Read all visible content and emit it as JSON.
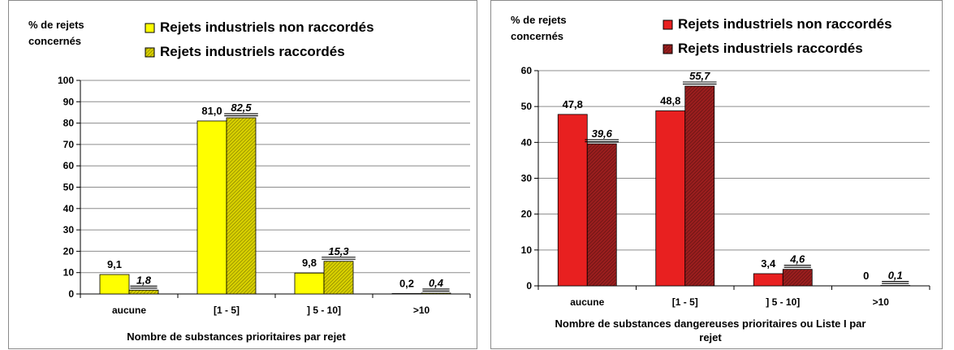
{
  "chart_data": [
    {
      "type": "bar",
      "ylabel": "% de rejets concernés",
      "xlabel": "Nombre de substances prioritaires par rejet",
      "categories": [
        "aucune",
        "[1 - 5]",
        "] 5 - 10]",
        ">10"
      ],
      "ylim": [
        0,
        100
      ],
      "yticks": [
        0,
        10,
        20,
        30,
        40,
        50,
        60,
        70,
        80,
        90,
        100
      ],
      "grid": true,
      "legend_position": "top",
      "series": [
        {
          "name": "Rejets industriels non raccordés",
          "values": [
            9.1,
            81.0,
            9.8,
            0.2
          ],
          "labels": [
            "9,1",
            "81,0",
            "9,8",
            "0,2"
          ],
          "color": "#ffff00",
          "pattern": "solid"
        },
        {
          "name": "Rejets industriels raccordés",
          "values": [
            1.8,
            82.5,
            15.3,
            0.4
          ],
          "labels": [
            "1,8",
            "82,5",
            "15,3",
            "0,4"
          ],
          "color": "#d8d000",
          "pattern": "hatched"
        }
      ]
    },
    {
      "type": "bar",
      "ylabel": "% de rejets concernés",
      "xlabel": "Nombre de substances dangereuses prioritaires ou Liste I par rejet",
      "categories": [
        "aucune",
        "[1 - 5]",
        "] 5 - 10]",
        ">10"
      ],
      "ylim": [
        0,
        60
      ],
      "yticks": [
        0,
        10,
        20,
        30,
        40,
        50,
        60
      ],
      "grid": true,
      "legend_position": "top",
      "series": [
        {
          "name": "Rejets industriels non raccordés",
          "values": [
            47.8,
            48.8,
            3.4,
            0
          ],
          "labels": [
            "47,8",
            "48,8",
            "3,4",
            "0"
          ],
          "color": "#e82020",
          "pattern": "solid"
        },
        {
          "name": "Rejets industriels raccordés",
          "values": [
            39.6,
            55.7,
            4.6,
            0.1
          ],
          "labels": [
            "39,6",
            "55,7",
            "4,6",
            "0,1"
          ],
          "color": "#9a1e1e",
          "pattern": "hatched"
        }
      ]
    }
  ]
}
